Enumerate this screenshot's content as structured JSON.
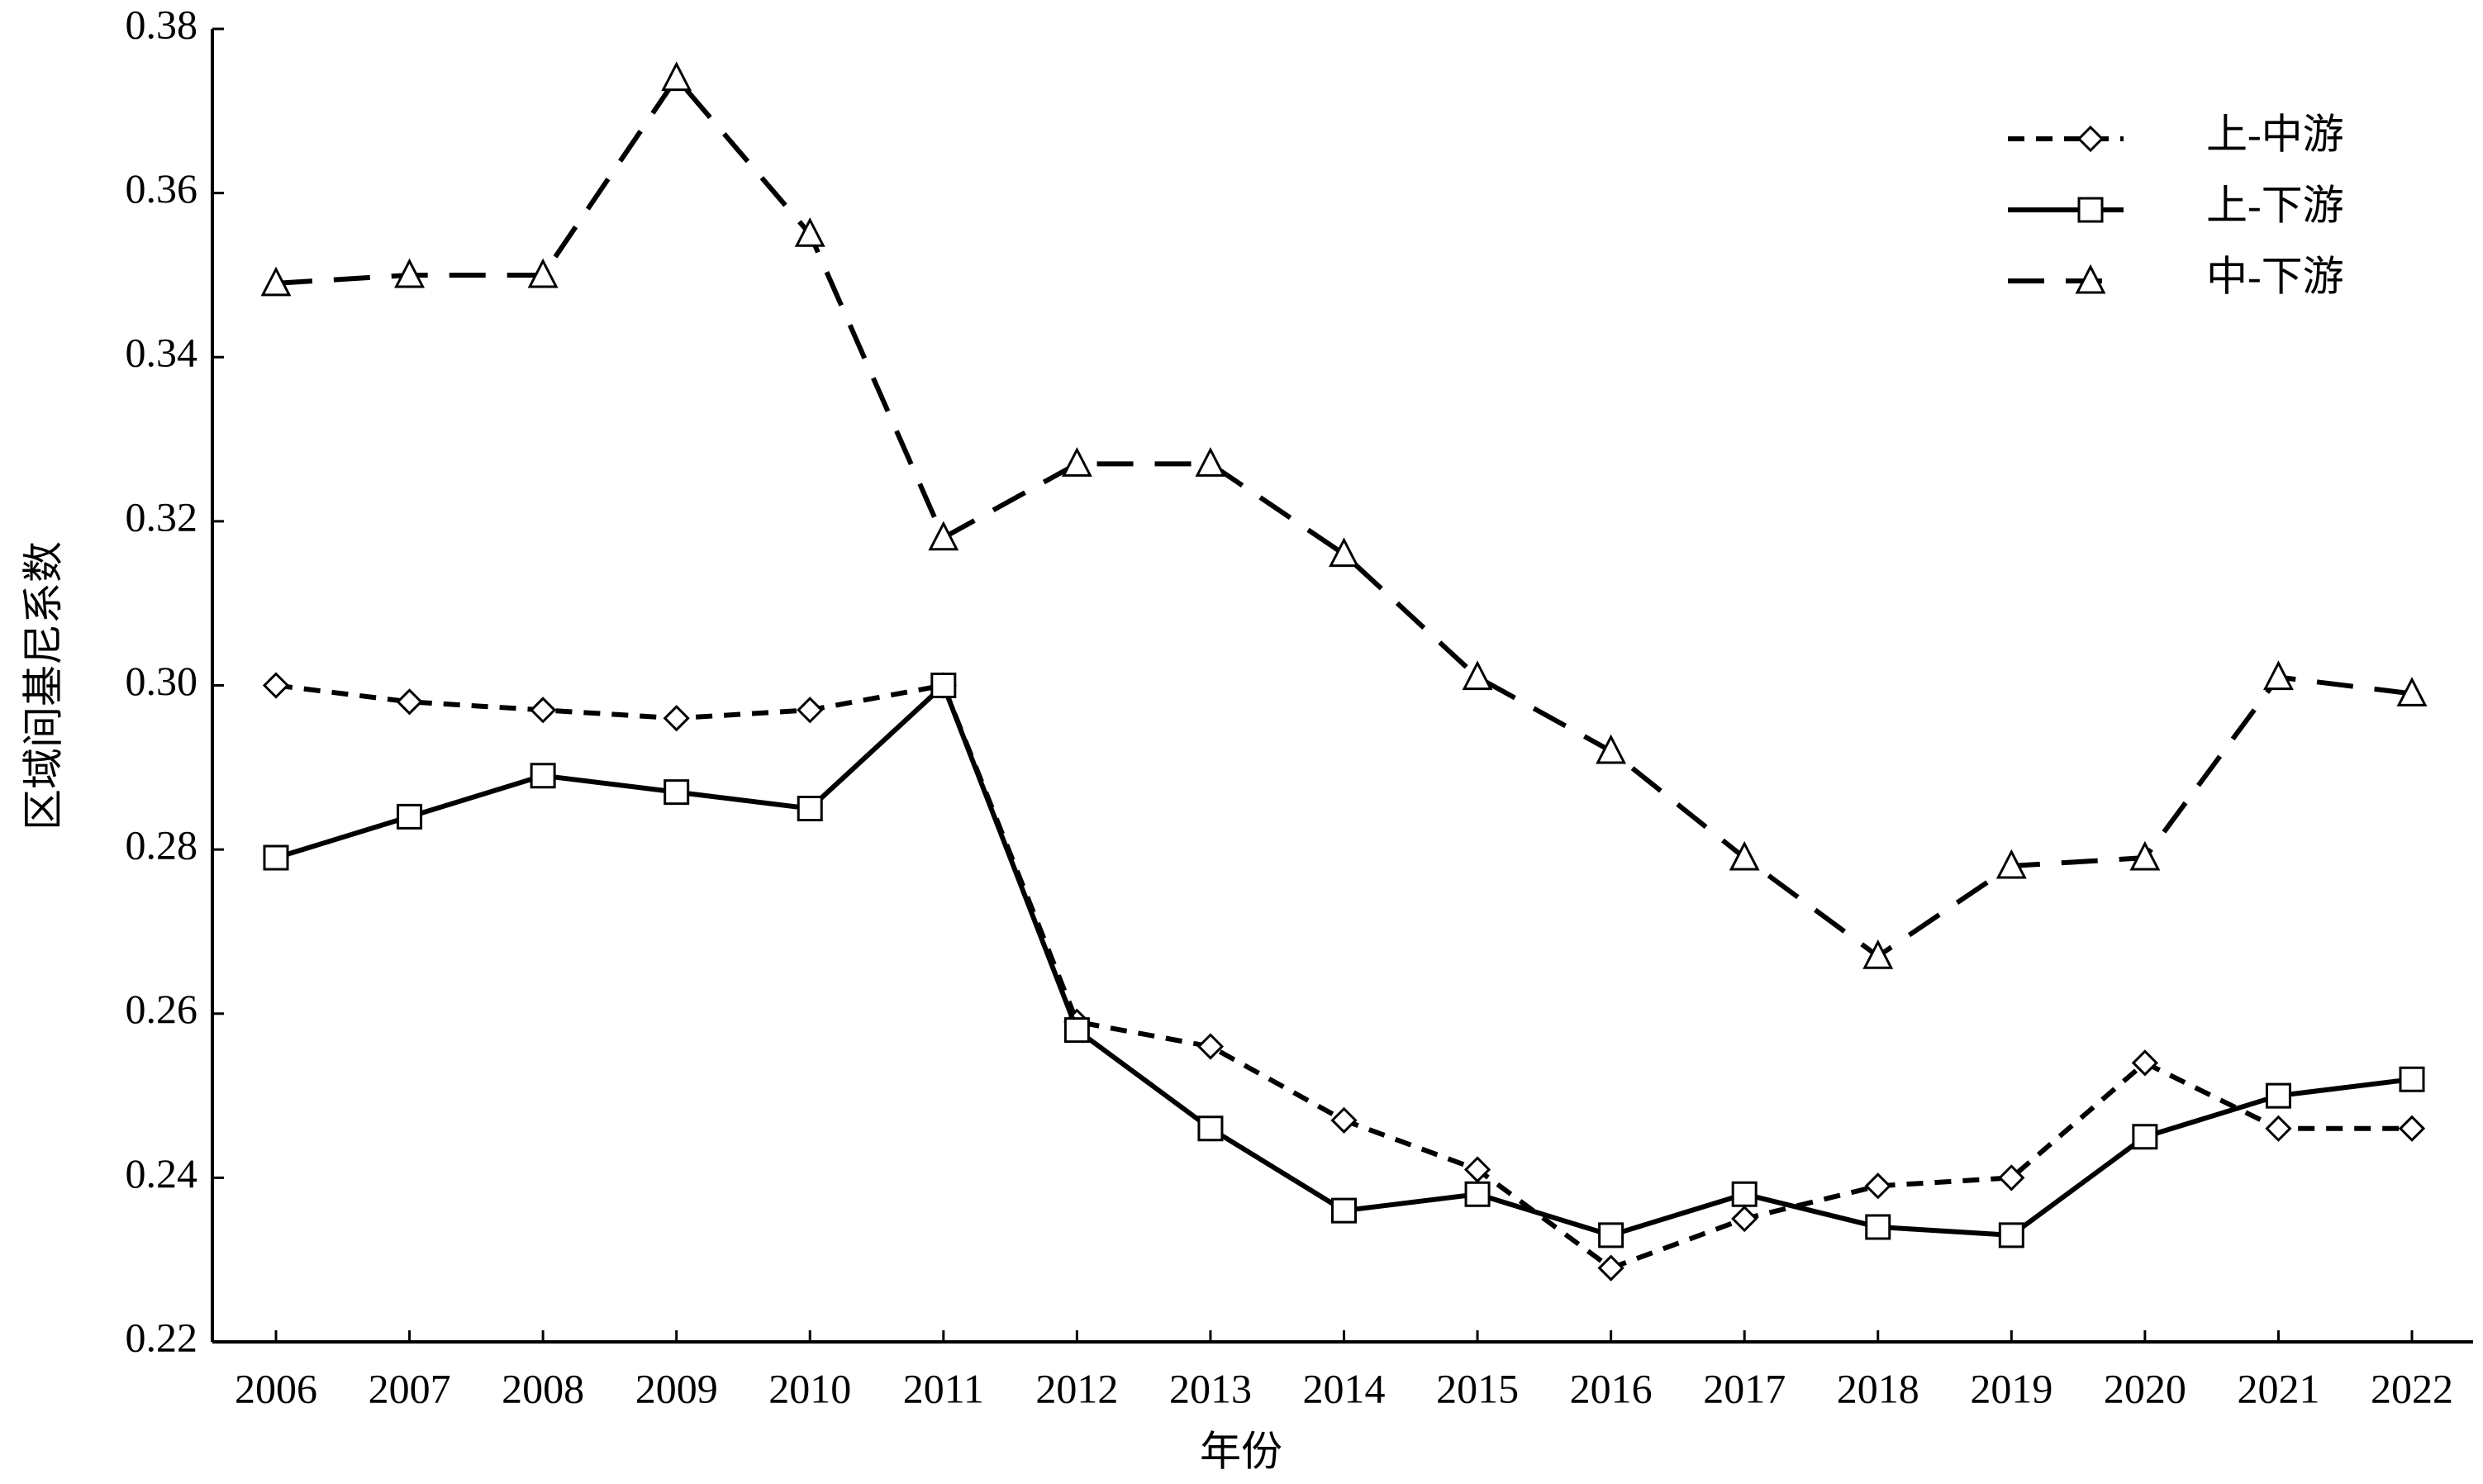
{
  "chart_data": {
    "type": "line",
    "xlabel": "年份",
    "ylabel": "区域间基尼系数",
    "categories": [
      "2006",
      "2007",
      "2008",
      "2009",
      "2010",
      "2011",
      "2012",
      "2013",
      "2014",
      "2015",
      "2016",
      "2017",
      "2018",
      "2019",
      "2020",
      "2021",
      "2022"
    ],
    "series": [
      {
        "name": "上-中游",
        "color": "#000000",
        "marker": "diamond",
        "linestyle": "short-dash",
        "values": [
          0.3,
          0.298,
          0.297,
          0.296,
          0.297,
          0.3,
          0.259,
          0.256,
          0.247,
          0.241,
          0.229,
          0.235,
          0.239,
          0.24,
          0.254,
          0.246,
          0.246
        ]
      },
      {
        "name": "上-下游",
        "color": "#000000",
        "marker": "square",
        "linestyle": "solid",
        "values": [
          0.279,
          0.284,
          0.289,
          0.287,
          0.285,
          0.3,
          0.258,
          0.246,
          0.236,
          0.238,
          0.233,
          0.238,
          0.234,
          0.233,
          0.245,
          0.25,
          0.252
        ]
      },
      {
        "name": "中-下游",
        "color": "#000000",
        "marker": "triangle",
        "linestyle": "long-dash",
        "values": [
          0.349,
          0.35,
          0.35,
          0.374,
          0.355,
          0.318,
          0.327,
          0.327,
          0.316,
          0.301,
          0.292,
          0.279,
          0.267,
          0.278,
          0.279,
          0.301,
          0.299
        ]
      }
    ],
    "ylim": [
      0.22,
      0.38
    ],
    "yticks": [
      0.22,
      0.24,
      0.26,
      0.28,
      {
        "value": 0.3,
        "label": "0.30"
      },
      0.32,
      0.34,
      0.36,
      0.38
    ],
    "grid": false,
    "legend": "upper right"
  }
}
